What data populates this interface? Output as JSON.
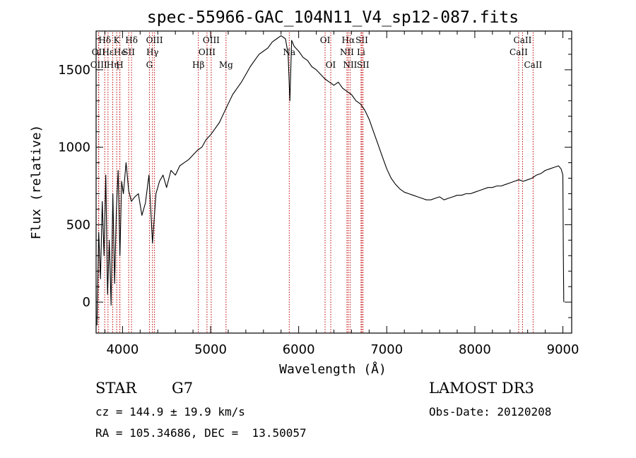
{
  "chart_data": {
    "type": "line",
    "title": "spec-55966-GAC_104N11_V4_sp12-087.fits",
    "xlabel": "Wavelength (Å)",
    "ylabel": "Flux (relative)",
    "xlim": [
      3700,
      9100
    ],
    "ylim": [
      -200,
      1750
    ],
    "xticks": [
      4000,
      5000,
      6000,
      7000,
      8000,
      9000
    ],
    "yticks": [
      0,
      500,
      1000,
      1500
    ],
    "series": [
      {
        "name": "flux",
        "x": [
          3710,
          3730,
          3750,
          3770,
          3790,
          3810,
          3830,
          3850,
          3870,
          3890,
          3910,
          3930,
          3950,
          3970,
          3990,
          4010,
          4040,
          4070,
          4100,
          4140,
          4180,
          4220,
          4260,
          4300,
          4340,
          4380,
          4420,
          4460,
          4500,
          4550,
          4600,
          4650,
          4700,
          4750,
          4800,
          4850,
          4900,
          4950,
          5000,
          5050,
          5100,
          5150,
          5200,
          5250,
          5300,
          5350,
          5400,
          5450,
          5500,
          5550,
          5600,
          5650,
          5700,
          5750,
          5800,
          5850,
          5880,
          5900,
          5920,
          5950,
          6000,
          6050,
          6100,
          6150,
          6200,
          6250,
          6300,
          6350,
          6400,
          6450,
          6500,
          6550,
          6600,
          6650,
          6700,
          6750,
          6800,
          6850,
          6900,
          6950,
          7000,
          7050,
          7100,
          7150,
          7200,
          7250,
          7300,
          7350,
          7400,
          7450,
          7500,
          7550,
          7600,
          7650,
          7700,
          7750,
          7800,
          7850,
          7900,
          7950,
          8000,
          8050,
          8100,
          8150,
          8200,
          8250,
          8300,
          8350,
          8400,
          8450,
          8500,
          8550,
          8600,
          8650,
          8700,
          8750,
          8800,
          8850,
          8900,
          8950,
          8980,
          9000,
          9005,
          9010
        ],
        "y": [
          -150,
          450,
          150,
          650,
          300,
          820,
          50,
          400,
          -20,
          700,
          120,
          600,
          850,
          300,
          780,
          700,
          900,
          720,
          650,
          680,
          700,
          560,
          640,
          820,
          380,
          700,
          780,
          820,
          740,
          850,
          820,
          880,
          900,
          920,
          950,
          980,
          1000,
          1050,
          1080,
          1120,
          1160,
          1220,
          1280,
          1340,
          1380,
          1420,
          1470,
          1520,
          1560,
          1600,
          1620,
          1640,
          1680,
          1700,
          1720,
          1700,
          1600,
          1300,
          1690,
          1650,
          1620,
          1580,
          1560,
          1520,
          1500,
          1470,
          1440,
          1420,
          1400,
          1420,
          1380,
          1360,
          1340,
          1300,
          1280,
          1240,
          1180,
          1100,
          1020,
          940,
          860,
          800,
          760,
          730,
          710,
          700,
          690,
          680,
          670,
          660,
          660,
          670,
          680,
          660,
          670,
          680,
          690,
          690,
          700,
          700,
          710,
          720,
          730,
          740,
          740,
          750,
          750,
          760,
          770,
          780,
          790,
          780,
          790,
          800,
          820,
          830,
          850,
          860,
          870,
          880,
          860,
          820,
          300,
          0
        ]
      }
    ],
    "line_markers": [
      {
        "label": "Hδ",
        "wl": 3798,
        "row": 1
      },
      {
        "label": "OII",
        "wl": 3727,
        "row": 2
      },
      {
        "label": "OIII",
        "wl": 3730,
        "row": 3
      },
      {
        "label": "Hε",
        "wl": 3835,
        "row": 2
      },
      {
        "label": "Hη",
        "wl": 3889,
        "row": 3
      },
      {
        "label": "K",
        "wl": 3934,
        "row": 1
      },
      {
        "label": "He",
        "wl": 3970,
        "row": 2
      },
      {
        "label": "H",
        "wl": 3969,
        "row": 3
      },
      {
        "label": "SII",
        "wl": 4070,
        "row": 2
      },
      {
        "label": "Hδ",
        "wl": 4102,
        "row": 1
      },
      {
        "label": "OIII",
        "wl": 4363,
        "row": 1
      },
      {
        "label": "Hγ",
        "wl": 4340,
        "row": 2
      },
      {
        "label": "G",
        "wl": 4305,
        "row": 3
      },
      {
        "label": "Hβ",
        "wl": 4861,
        "row": 3
      },
      {
        "label": "OIII",
        "wl": 5007,
        "row": 1
      },
      {
        "label": "OIII",
        "wl": 4959,
        "row": 2
      },
      {
        "label": "Mg",
        "wl": 5175,
        "row": 3
      },
      {
        "label": "Na",
        "wl": 5893,
        "row": 2
      },
      {
        "label": "OI",
        "wl": 6300,
        "row": 1
      },
      {
        "label": "OI",
        "wl": 6364,
        "row": 3
      },
      {
        "label": "Hα",
        "wl": 6563,
        "row": 1
      },
      {
        "label": "NII",
        "wl": 6548,
        "row": 2
      },
      {
        "label": "NII",
        "wl": 6584,
        "row": 3
      },
      {
        "label": "SII",
        "wl": 6717,
        "row": 1
      },
      {
        "label": "Li",
        "wl": 6708,
        "row": 2
      },
      {
        "label": "SII",
        "wl": 6731,
        "row": 3
      },
      {
        "label": "CaII",
        "wl": 8542,
        "row": 1
      },
      {
        "label": "CaII",
        "wl": 8498,
        "row": 2
      },
      {
        "label": "CaII",
        "wl": 8662,
        "row": 3
      }
    ],
    "marker_color": "#c00000"
  },
  "info": {
    "class": "STAR",
    "subclass": "G7",
    "survey": "LAMOST DR3",
    "cz": "cz = 144.9 ± 19.9 km/s",
    "obs_date": "Obs-Date: 20120208",
    "coords": "RA = 105.34686, DEC =  13.50057"
  }
}
